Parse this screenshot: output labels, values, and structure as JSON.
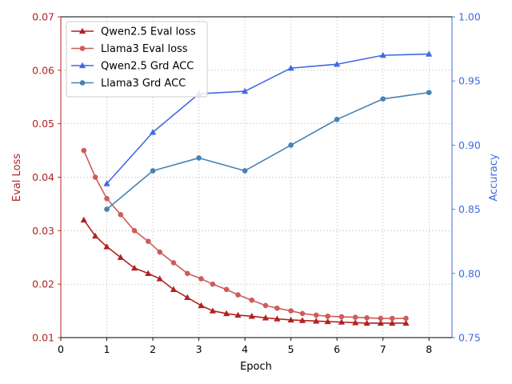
{
  "chart_data": {
    "type": "line",
    "title": "",
    "xlabel": "Epoch",
    "ylabel_left": "Eval Loss",
    "ylabel_right": "Accuracy",
    "xlim": [
      0,
      8.5
    ],
    "ylim_left": [
      0.01,
      0.07
    ],
    "ylim_right": [
      0.75,
      1.0
    ],
    "grid": true,
    "legend_position": "top-left",
    "x_ticks": [
      0,
      1,
      2,
      3,
      4,
      5,
      6,
      7,
      8
    ],
    "x_tick_labels": [
      "0",
      "1",
      "2",
      "3",
      "4",
      "5",
      "6",
      "7",
      "8"
    ],
    "y_left_ticks": [
      0.01,
      0.02,
      0.03,
      0.04,
      0.05,
      0.06,
      0.07
    ],
    "y_left_tick_labels": [
      "0.01",
      "0.02",
      "0.03",
      "0.04",
      "0.05",
      "0.06",
      "0.07"
    ],
    "y_right_ticks": [
      0.75,
      0.8,
      0.85,
      0.9,
      0.95,
      1.0
    ],
    "y_right_tick_labels": [
      "0.75",
      "0.80",
      "0.85",
      "0.90",
      "0.95",
      "1.00"
    ],
    "colors": {
      "left_axis": "#b22222",
      "right_axis": "#4169e1"
    },
    "series": [
      {
        "name": "Qwen2.5 Eval loss",
        "axis": "left",
        "color": "#b22222",
        "marker": "triangle",
        "x": [
          0.5,
          0.75,
          1.0,
          1.3,
          1.6,
          1.9,
          2.15,
          2.45,
          2.75,
          3.05,
          3.3,
          3.6,
          3.85,
          4.15,
          4.45,
          4.7,
          5.0,
          5.25,
          5.55,
          5.8,
          6.1,
          6.4,
          6.65,
          6.95,
          7.2,
          7.5
        ],
        "values": [
          0.032,
          0.029,
          0.027,
          0.025,
          0.023,
          0.022,
          0.021,
          0.019,
          0.0175,
          0.016,
          0.015,
          0.0145,
          0.0142,
          0.014,
          0.0137,
          0.0135,
          0.0133,
          0.0132,
          0.0131,
          0.013,
          0.0129,
          0.0128,
          0.0127,
          0.0127,
          0.0127,
          0.0127
        ]
      },
      {
        "name": "Llama3 Eval loss",
        "axis": "left",
        "color": "#cd5c5c",
        "marker": "circle",
        "x": [
          0.5,
          0.75,
          1.0,
          1.3,
          1.6,
          1.9,
          2.15,
          2.45,
          2.75,
          3.05,
          3.3,
          3.6,
          3.85,
          4.15,
          4.45,
          4.7,
          5.0,
          5.25,
          5.55,
          5.8,
          6.1,
          6.4,
          6.65,
          6.95,
          7.2,
          7.5
        ],
        "values": [
          0.045,
          0.04,
          0.036,
          0.033,
          0.03,
          0.028,
          0.026,
          0.024,
          0.022,
          0.021,
          0.02,
          0.019,
          0.018,
          0.017,
          0.016,
          0.0155,
          0.015,
          0.0145,
          0.0142,
          0.014,
          0.0139,
          0.0138,
          0.0137,
          0.0136,
          0.0136,
          0.0136
        ]
      },
      {
        "name": "Qwen2.5 Grd ACC",
        "axis": "right",
        "color": "#4169e1",
        "marker": "triangle",
        "x": [
          1,
          2,
          3,
          4,
          5,
          6,
          7,
          8
        ],
        "values": [
          0.87,
          0.91,
          0.94,
          0.942,
          0.96,
          0.963,
          0.97,
          0.971
        ]
      },
      {
        "name": "Llama3 Grd ACC",
        "axis": "right",
        "color": "#4682b4",
        "marker": "circle",
        "x": [
          1,
          2,
          3,
          4,
          5,
          6,
          7,
          8
        ],
        "values": [
          0.85,
          0.88,
          0.89,
          0.88,
          0.9,
          0.92,
          0.936,
          0.941
        ]
      }
    ]
  }
}
